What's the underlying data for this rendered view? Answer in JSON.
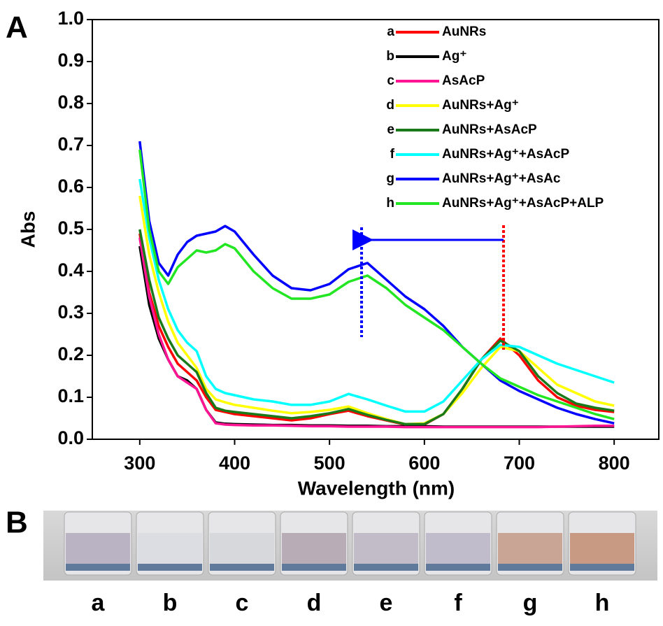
{
  "chart_data": {
    "type": "line",
    "panel_label": "A",
    "xlabel": "Wavelength (nm)",
    "ylabel": "Abs",
    "xlim": [
      250,
      850
    ],
    "ylim": [
      0,
      1.0
    ],
    "xticks": [
      300,
      400,
      500,
      600,
      700,
      800
    ],
    "yticks": [
      {
        "value": 0,
        "label": "0.0"
      },
      0.1,
      0.2,
      0.3,
      0.4,
      0.5,
      0.6,
      0.7,
      0.8,
      0.9,
      {
        "value": 1,
        "label": "1.0"
      }
    ],
    "legend": "upper right",
    "x": [
      300,
      310,
      320,
      330,
      340,
      350,
      360,
      370,
      380,
      390,
      400,
      420,
      440,
      460,
      480,
      500,
      520,
      540,
      560,
      580,
      600,
      620,
      640,
      660,
      680,
      700,
      720,
      740,
      760,
      780,
      800
    ],
    "series": [
      {
        "label": "a",
        "name": "AuNRs",
        "color": "#ff0000",
        "values": [
          0.49,
          0.35,
          0.27,
          0.22,
          0.18,
          0.16,
          0.14,
          0.1,
          0.07,
          0.065,
          0.06,
          0.055,
          0.05,
          0.045,
          0.05,
          0.06,
          0.068,
          0.055,
          0.045,
          0.035,
          0.035,
          0.06,
          0.12,
          0.19,
          0.24,
          0.2,
          0.14,
          0.1,
          0.08,
          0.07,
          0.065
        ]
      },
      {
        "label": "b",
        "name": "Ag⁺",
        "color": "#000000",
        "values": [
          0.46,
          0.32,
          0.24,
          0.19,
          0.15,
          0.14,
          0.12,
          0.07,
          0.04,
          0.037,
          0.036,
          0.035,
          0.034,
          0.034,
          0.033,
          0.033,
          0.032,
          0.032,
          0.031,
          0.031,
          0.031,
          0.03,
          0.03,
          0.03,
          0.03,
          0.03,
          0.03,
          0.03,
          0.03,
          0.03,
          0.03
        ]
      },
      {
        "label": "c",
        "name": "AsAcP",
        "color": "#ff1493",
        "values": [
          0.48,
          0.34,
          0.25,
          0.19,
          0.15,
          0.135,
          0.12,
          0.07,
          0.038,
          0.035,
          0.034,
          0.033,
          0.033,
          0.032,
          0.031,
          0.031,
          0.03,
          0.03,
          0.03,
          0.029,
          0.029,
          0.029,
          0.029,
          0.029,
          0.029,
          0.029,
          0.029,
          0.03,
          0.031,
          0.032,
          0.032
        ]
      },
      {
        "label": "d",
        "name": "AuNRs+Ag⁺",
        "color": "#ffff00",
        "values": [
          0.58,
          0.44,
          0.35,
          0.28,
          0.23,
          0.2,
          0.17,
          0.12,
          0.095,
          0.088,
          0.082,
          0.075,
          0.068,
          0.062,
          0.065,
          0.07,
          0.078,
          0.062,
          0.048,
          0.036,
          0.038,
          0.06,
          0.11,
          0.17,
          0.22,
          0.21,
          0.17,
          0.13,
          0.11,
          0.09,
          0.08
        ]
      },
      {
        "label": "e",
        "name": "AuNRs+AsAcP",
        "color": "#1a7a1a",
        "values": [
          0.5,
          0.38,
          0.29,
          0.24,
          0.2,
          0.18,
          0.16,
          0.11,
          0.075,
          0.068,
          0.065,
          0.06,
          0.055,
          0.05,
          0.055,
          0.062,
          0.072,
          0.058,
          0.046,
          0.036,
          0.036,
          0.06,
          0.12,
          0.19,
          0.235,
          0.21,
          0.15,
          0.11,
          0.085,
          0.075,
          0.068
        ]
      },
      {
        "label": "f",
        "name": "AuNRs+Ag⁺+AsAcP",
        "color": "#00ffff",
        "values": [
          0.62,
          0.48,
          0.38,
          0.31,
          0.26,
          0.23,
          0.21,
          0.15,
          0.12,
          0.11,
          0.105,
          0.095,
          0.09,
          0.082,
          0.082,
          0.09,
          0.108,
          0.095,
          0.08,
          0.066,
          0.066,
          0.09,
          0.14,
          0.19,
          0.225,
          0.22,
          0.2,
          0.18,
          0.165,
          0.15,
          0.135
        ]
      },
      {
        "label": "g",
        "name": "AuNRs+Ag⁺+AsAc",
        "color": "#0000ff",
        "values": [
          0.71,
          0.52,
          0.42,
          0.39,
          0.44,
          0.47,
          0.485,
          0.49,
          0.495,
          0.508,
          0.495,
          0.44,
          0.39,
          0.36,
          0.355,
          0.37,
          0.405,
          0.42,
          0.38,
          0.34,
          0.31,
          0.27,
          0.22,
          0.18,
          0.14,
          0.115,
          0.095,
          0.075,
          0.06,
          0.048,
          0.038
        ]
      },
      {
        "label": "h",
        "name": "AuNRs+Ag⁺+AsAcP+ALP",
        "color": "#22e622",
        "values": [
          0.69,
          0.5,
          0.4,
          0.37,
          0.41,
          0.43,
          0.45,
          0.445,
          0.45,
          0.465,
          0.455,
          0.4,
          0.36,
          0.335,
          0.335,
          0.345,
          0.375,
          0.39,
          0.36,
          0.32,
          0.29,
          0.26,
          0.22,
          0.18,
          0.145,
          0.125,
          0.105,
          0.09,
          0.075,
          0.06,
          0.048
        ]
      }
    ]
  },
  "photo": {
    "panel_label": "B",
    "labels": [
      "a",
      "b",
      "c",
      "d",
      "e",
      "f",
      "g",
      "h"
    ]
  }
}
